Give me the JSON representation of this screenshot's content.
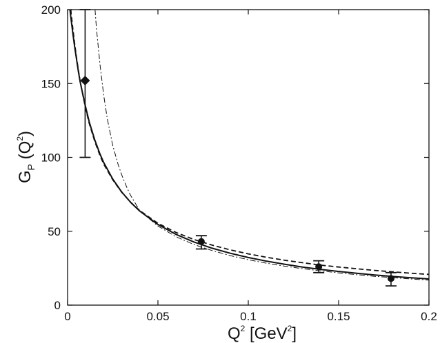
{
  "chart_data": {
    "type": "scatter",
    "title": "",
    "xlabel": {
      "main": "Q",
      "sup1": "2",
      "bracket": " [GeV",
      "sup2": "2",
      "close": "]"
    },
    "ylabel": {
      "main": "G",
      "sub": "P",
      "open": " (Q",
      "sup": "2",
      "close": ")"
    },
    "xlim": [
      0,
      0.2
    ],
    "ylim": [
      0,
      200
    ],
    "x_ticks": [
      0,
      0.05,
      0.1,
      0.15,
      0.2
    ],
    "x_tick_labels": [
      "0",
      "0.05",
      "0.1",
      "0.15",
      "0.2"
    ],
    "y_ticks": [
      0,
      50,
      100,
      150,
      200
    ],
    "y_tick_labels": [
      "0",
      "50",
      "100",
      "150",
      "200"
    ],
    "grid": false,
    "data_points": [
      {
        "x": 0.0097,
        "y": 152,
        "err_low": 100,
        "err_high": 200,
        "marker": "diamond"
      },
      {
        "x": 0.074,
        "y": 43,
        "err_low": 38,
        "err_high": 47,
        "marker": "circle"
      },
      {
        "x": 0.139,
        "y": 26,
        "err_low": 22,
        "err_high": 30,
        "marker": "circle"
      },
      {
        "x": 0.179,
        "y": 18,
        "err_low": 13,
        "err_high": 22,
        "marker": "circle"
      }
    ],
    "series": [
      {
        "style": "solid",
        "x": [
          0.0013,
          0.002,
          0.003,
          0.004,
          0.005,
          0.006,
          0.007,
          0.008,
          0.01,
          0.012,
          0.015,
          0.018,
          0.02,
          0.025,
          0.03,
          0.035,
          0.04,
          0.05,
          0.06,
          0.07,
          0.08,
          0.09,
          0.1,
          0.11,
          0.12,
          0.13,
          0.14,
          0.15,
          0.16,
          0.17,
          0.18,
          0.19,
          0.2
        ],
        "y": [
          200,
          193,
          183,
          174,
          166,
          158,
          151,
          145,
          134,
          124,
          112,
          102,
          96.5,
          85.3,
          76.5,
          69.4,
          63.6,
          54.6,
          47.9,
          42.7,
          38.5,
          35.1,
          32.2,
          29.8,
          27.7,
          25.8,
          24.2,
          22.8,
          21.6,
          20.4,
          19.4,
          18.5,
          17.7
        ]
      },
      {
        "style": "dashed",
        "x": [
          0.0018,
          0.002,
          0.003,
          0.004,
          0.005,
          0.006,
          0.007,
          0.008,
          0.01,
          0.012,
          0.015,
          0.018,
          0.02,
          0.025,
          0.03,
          0.035,
          0.04,
          0.05,
          0.06,
          0.07,
          0.08,
          0.09,
          0.1,
          0.11,
          0.12,
          0.13,
          0.14,
          0.15,
          0.16,
          0.17,
          0.18,
          0.19,
          0.2
        ],
        "y": [
          200,
          197,
          186,
          176,
          167,
          159,
          151,
          145,
          133,
          123,
          111,
          101,
          95.5,
          84.8,
          76.3,
          69.5,
          63.9,
          55.4,
          49.2,
          44.4,
          40.6,
          37.4,
          34.7,
          32.4,
          30.4,
          28.7,
          27.1,
          25.8,
          24.6,
          23.5,
          22.5,
          21.6,
          20.8
        ]
      },
      {
        "style": "dashdot",
        "x": [
          0.0152,
          0.016,
          0.018,
          0.02,
          0.022,
          0.025,
          0.028,
          0.03,
          0.033,
          0.035,
          0.04,
          0.05,
          0.06,
          0.07,
          0.08,
          0.09,
          0.1,
          0.11,
          0.12,
          0.13,
          0.14,
          0.15,
          0.16,
          0.17,
          0.18,
          0.19,
          0.2
        ],
        "y": [
          200,
          187,
          162,
          142,
          126,
          108,
          95,
          88,
          79,
          74,
          63.8,
          53.5,
          46.3,
          41,
          36.9,
          33.5,
          30.7,
          28.4,
          26.4,
          24.7,
          23.2,
          21.8,
          20.6,
          19.5,
          18.6,
          17.7,
          16.9
        ]
      }
    ]
  }
}
